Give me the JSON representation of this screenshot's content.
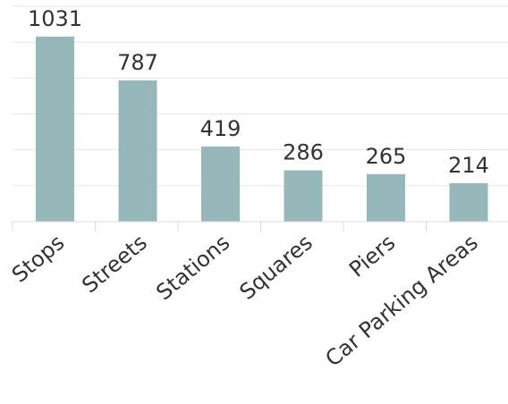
{
  "chart_data": {
    "type": "bar",
    "categories": [
      "Stops",
      "Streets",
      "Stations",
      "Squares",
      "Piers",
      "Car Parking Areas"
    ],
    "values": [
      1031,
      787,
      419,
      286,
      265,
      214
    ],
    "title": "",
    "xlabel": "",
    "ylabel": "",
    "ylim": [
      0,
      1050
    ],
    "grid": true,
    "legend": "none",
    "bar_color": "#97b8ba",
    "label_color": "#333333"
  }
}
